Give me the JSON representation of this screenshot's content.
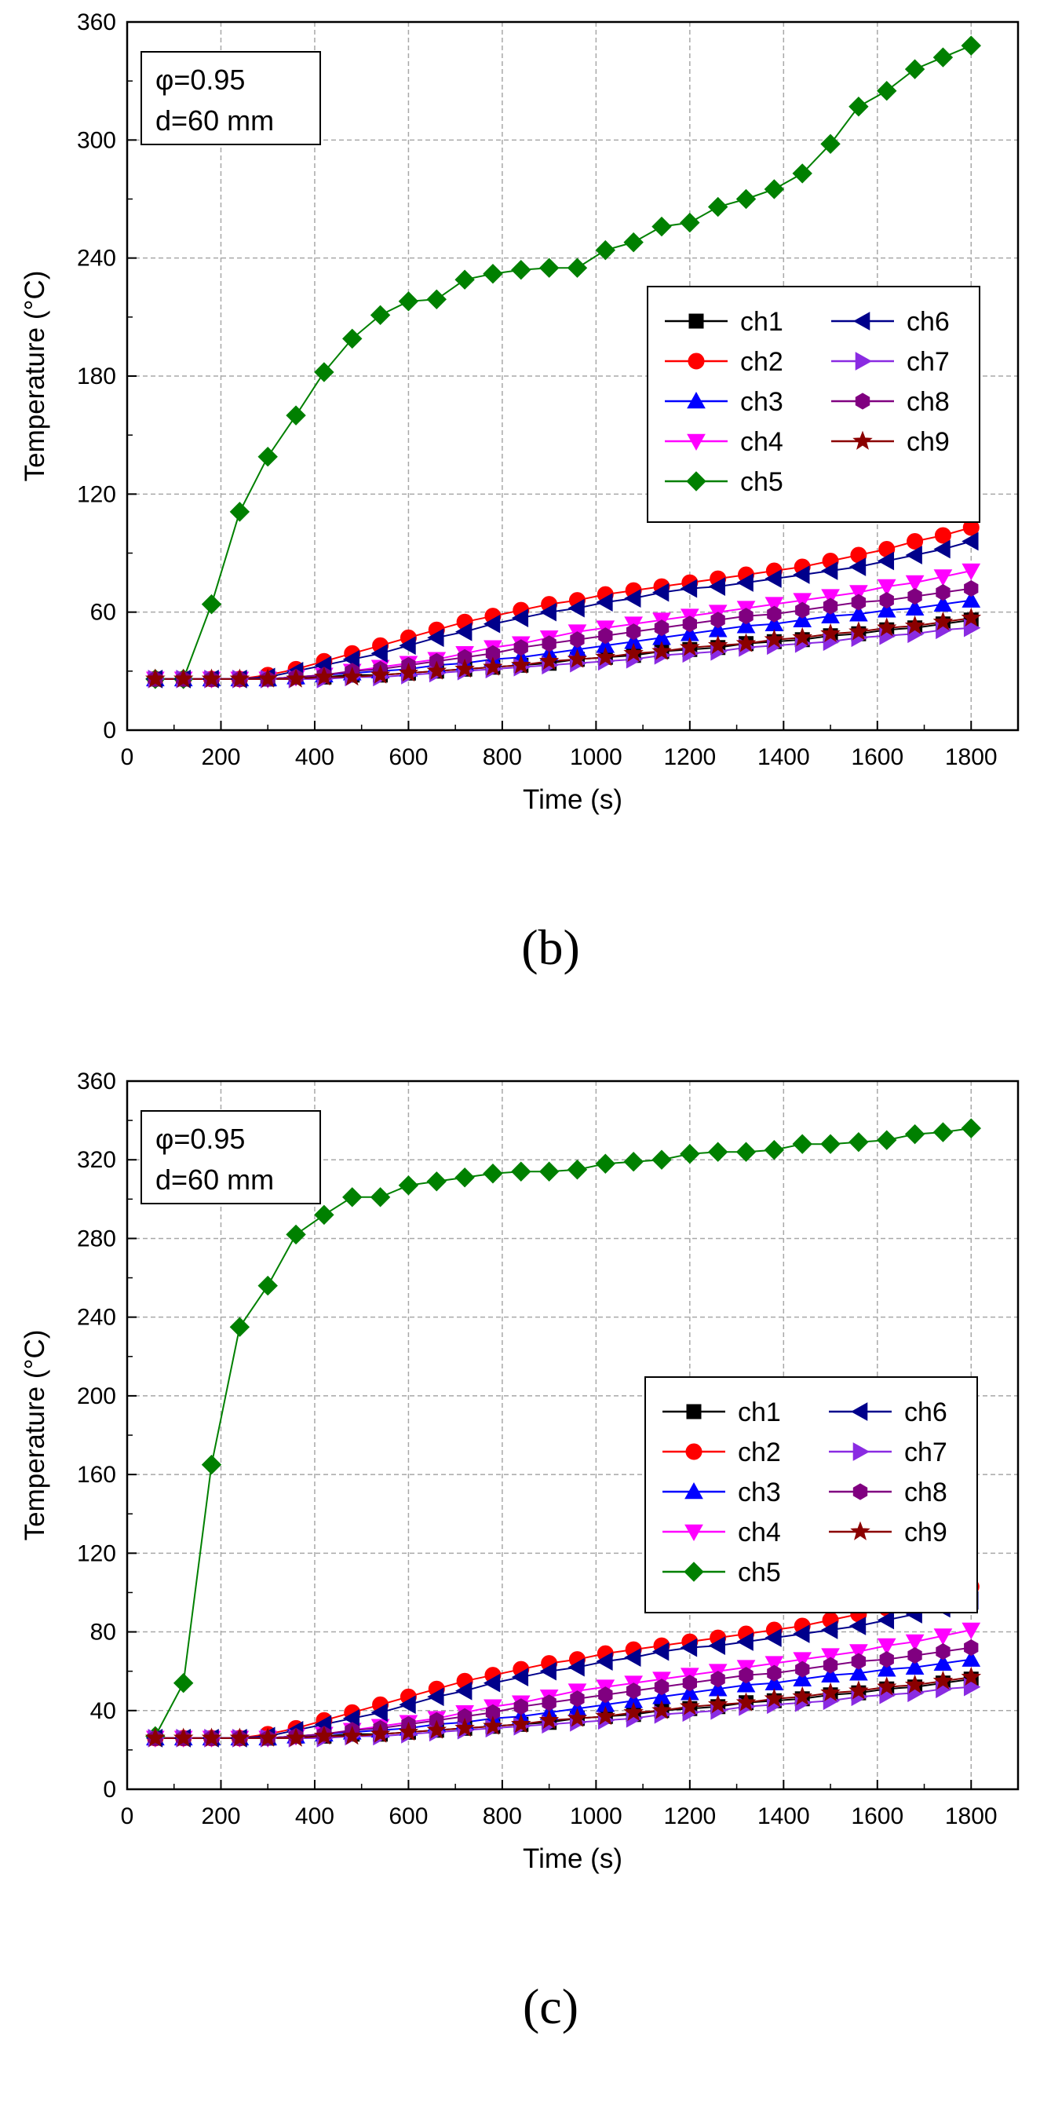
{
  "chart_data": [
    {
      "type": "line",
      "panel_label": "(b)",
      "annotation": [
        "φ=0.95",
        "d=60 mm"
      ],
      "xlabel": "Time (s)",
      "ylabel": "Temperature (°C)",
      "xlim": [
        0,
        1900
      ],
      "ylim": [
        0,
        360
      ],
      "xticks": [
        0,
        200,
        400,
        600,
        800,
        1000,
        1200,
        1400,
        1600,
        1800
      ],
      "yticks": [
        0,
        60,
        120,
        180,
        240,
        300,
        360
      ],
      "grid": true,
      "legend_position": "right, middle",
      "legend_columns": [
        [
          "ch1",
          "ch2",
          "ch3",
          "ch4",
          "ch5"
        ],
        [
          "ch6",
          "ch7",
          "ch8",
          "ch9"
        ]
      ],
      "x": [
        60,
        120,
        180,
        240,
        300,
        360,
        420,
        480,
        540,
        600,
        660,
        720,
        780,
        840,
        900,
        960,
        1020,
        1080,
        1140,
        1200,
        1260,
        1320,
        1380,
        1440,
        1500,
        1560,
        1620,
        1680,
        1740,
        1800
      ],
      "series": [
        {
          "name": "ch1",
          "color": "#000000",
          "marker": "square",
          "values": [
            26,
            26,
            26,
            26,
            26,
            27,
            27,
            28,
            28,
            29,
            30,
            31,
            32,
            33,
            34,
            36,
            37,
            38,
            40,
            41,
            42,
            44,
            45,
            46,
            48,
            49,
            51,
            52,
            54,
            56
          ]
        },
        {
          "name": "ch2",
          "color": "#ff0000",
          "marker": "circle",
          "values": [
            26,
            26,
            26,
            26,
            28,
            31,
            35,
            39,
            43,
            47,
            51,
            55,
            58,
            61,
            64,
            66,
            69,
            71,
            73,
            75,
            77,
            79,
            81,
            83,
            86,
            89,
            92,
            96,
            99,
            103
          ]
        },
        {
          "name": "ch3",
          "color": "#0000ff",
          "marker": "triangle-up",
          "values": [
            26,
            26,
            26,
            26,
            26,
            27,
            28,
            29,
            30,
            31,
            33,
            34,
            36,
            37,
            39,
            41,
            43,
            45,
            47,
            49,
            51,
            53,
            54,
            56,
            58,
            59,
            61,
            62,
            64,
            66
          ]
        },
        {
          "name": "ch4",
          "color": "#ff00ff",
          "marker": "triangle-down",
          "values": [
            26,
            26,
            26,
            26,
            26,
            27,
            28,
            30,
            32,
            34,
            36,
            39,
            42,
            44,
            47,
            50,
            52,
            54,
            56,
            58,
            60,
            62,
            64,
            66,
            68,
            70,
            73,
            75,
            78,
            81
          ]
        },
        {
          "name": "ch5",
          "color": "#008000",
          "marker": "diamond",
          "values": [
            26,
            26,
            64,
            111,
            139,
            160,
            182,
            199,
            211,
            218,
            219,
            229,
            232,
            234,
            235,
            235,
            244,
            248,
            256,
            258,
            266,
            270,
            275,
            283,
            298,
            317,
            325,
            336,
            342,
            348
          ]
        },
        {
          "name": "ch6",
          "color": "#00008b",
          "marker": "triangle-left",
          "values": [
            26,
            26,
            26,
            26,
            27,
            30,
            33,
            36,
            39,
            43,
            47,
            50,
            54,
            57,
            60,
            62,
            65,
            67,
            70,
            72,
            73,
            75,
            77,
            79,
            81,
            83,
            86,
            89,
            92,
            96
          ]
        },
        {
          "name": "ch7",
          "color": "#8a2be2",
          "marker": "triangle-right",
          "values": [
            26,
            26,
            26,
            26,
            26,
            26,
            26,
            27,
            27,
            28,
            29,
            30,
            31,
            32,
            33,
            34,
            35,
            36,
            38,
            39,
            40,
            42,
            43,
            44,
            45,
            47,
            48,
            49,
            51,
            52
          ]
        },
        {
          "name": "ch8",
          "color": "#800080",
          "marker": "hexagon",
          "values": [
            26,
            26,
            26,
            26,
            26,
            27,
            28,
            30,
            31,
            33,
            35,
            37,
            39,
            42,
            44,
            46,
            48,
            50,
            52,
            54,
            56,
            58,
            59,
            61,
            63,
            65,
            66,
            68,
            70,
            72
          ]
        },
        {
          "name": "ch9",
          "color": "#8b0000",
          "marker": "star",
          "values": [
            26,
            26,
            26,
            26,
            26,
            26,
            27,
            27,
            28,
            29,
            30,
            31,
            32,
            33,
            35,
            36,
            37,
            39,
            40,
            42,
            43,
            44,
            46,
            47,
            49,
            50,
            52,
            53,
            55,
            57
          ]
        }
      ]
    },
    {
      "type": "line",
      "panel_label": "(c)",
      "annotation": [
        "φ=0.95",
        "d=60 mm"
      ],
      "xlabel": "Time (s)",
      "ylabel": "Temperature (°C)",
      "xlim": [
        0,
        1900
      ],
      "ylim": [
        0,
        360
      ],
      "xticks": [
        0,
        200,
        400,
        600,
        800,
        1000,
        1200,
        1400,
        1600,
        1800
      ],
      "yticks": [
        0,
        40,
        80,
        120,
        160,
        200,
        240,
        280,
        320,
        360
      ],
      "grid": true,
      "legend_position": "right, middle",
      "legend_columns": [
        [
          "ch1",
          "ch2",
          "ch3",
          "ch4",
          "ch5"
        ],
        [
          "ch6",
          "ch7",
          "ch8",
          "ch9"
        ]
      ],
      "x": [
        60,
        120,
        180,
        240,
        300,
        360,
        420,
        480,
        540,
        600,
        660,
        720,
        780,
        840,
        900,
        960,
        1020,
        1080,
        1140,
        1200,
        1260,
        1320,
        1380,
        1440,
        1500,
        1560,
        1620,
        1680,
        1740,
        1800
      ],
      "series": [
        {
          "name": "ch1",
          "color": "#000000",
          "marker": "square",
          "values": [
            26,
            26,
            26,
            26,
            26,
            27,
            27,
            28,
            28,
            29,
            30,
            31,
            32,
            33,
            34,
            36,
            37,
            38,
            40,
            41,
            42,
            44,
            45,
            46,
            48,
            49,
            51,
            52,
            54,
            56
          ]
        },
        {
          "name": "ch2",
          "color": "#ff0000",
          "marker": "circle",
          "values": [
            26,
            26,
            26,
            26,
            28,
            31,
            35,
            39,
            43,
            47,
            51,
            55,
            58,
            61,
            64,
            66,
            69,
            71,
            73,
            75,
            77,
            79,
            81,
            83,
            86,
            89,
            92,
            96,
            99,
            103
          ]
        },
        {
          "name": "ch3",
          "color": "#0000ff",
          "marker": "triangle-up",
          "values": [
            26,
            26,
            26,
            26,
            26,
            27,
            28,
            29,
            30,
            31,
            33,
            34,
            36,
            37,
            39,
            41,
            43,
            45,
            47,
            49,
            51,
            53,
            54,
            56,
            58,
            59,
            61,
            62,
            64,
            66
          ]
        },
        {
          "name": "ch4",
          "color": "#ff00ff",
          "marker": "triangle-down",
          "values": [
            26,
            26,
            26,
            26,
            26,
            27,
            28,
            30,
            32,
            34,
            36,
            39,
            42,
            44,
            47,
            50,
            52,
            54,
            56,
            58,
            60,
            62,
            64,
            66,
            68,
            70,
            73,
            75,
            78,
            81
          ]
        },
        {
          "name": "ch5",
          "color": "#008000",
          "marker": "diamond",
          "values": [
            27,
            54,
            165,
            235,
            256,
            282,
            292,
            301,
            301,
            307,
            309,
            311,
            313,
            314,
            314,
            315,
            318,
            319,
            320,
            323,
            324,
            324,
            325,
            328,
            328,
            329,
            330,
            333,
            334,
            336
          ]
        },
        {
          "name": "ch6",
          "color": "#00008b",
          "marker": "triangle-left",
          "values": [
            26,
            26,
            26,
            26,
            27,
            30,
            33,
            36,
            39,
            43,
            47,
            50,
            54,
            57,
            60,
            62,
            65,
            67,
            70,
            72,
            73,
            75,
            77,
            79,
            81,
            83,
            86,
            89,
            92,
            96
          ]
        },
        {
          "name": "ch7",
          "color": "#8a2be2",
          "marker": "triangle-right",
          "values": [
            26,
            26,
            26,
            26,
            26,
            26,
            26,
            27,
            27,
            28,
            29,
            30,
            31,
            32,
            33,
            34,
            35,
            36,
            38,
            39,
            40,
            42,
            43,
            44,
            45,
            47,
            48,
            49,
            51,
            52
          ]
        },
        {
          "name": "ch8",
          "color": "#800080",
          "marker": "hexagon",
          "values": [
            26,
            26,
            26,
            26,
            26,
            27,
            28,
            30,
            31,
            33,
            35,
            37,
            39,
            42,
            44,
            46,
            48,
            50,
            52,
            54,
            56,
            58,
            59,
            61,
            63,
            65,
            66,
            68,
            70,
            72
          ]
        },
        {
          "name": "ch9",
          "color": "#8b0000",
          "marker": "star",
          "values": [
            26,
            26,
            26,
            26,
            26,
            26,
            27,
            27,
            28,
            29,
            30,
            31,
            32,
            33,
            35,
            36,
            37,
            39,
            40,
            42,
            43,
            44,
            46,
            47,
            49,
            50,
            52,
            53,
            55,
            57
          ]
        }
      ]
    }
  ]
}
